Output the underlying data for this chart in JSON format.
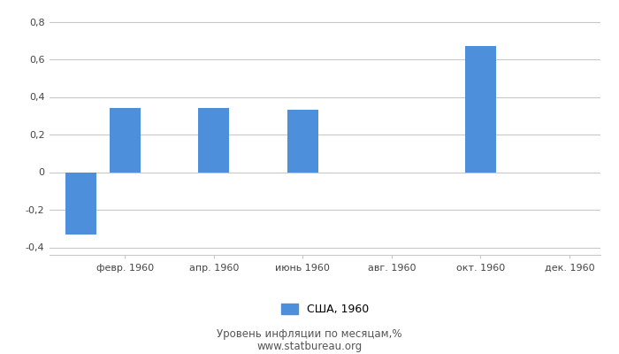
{
  "months_x": [
    0,
    1,
    2,
    3,
    4,
    5,
    6,
    7,
    8,
    9,
    10,
    11
  ],
  "values": [
    -0.33,
    0.34,
    0.0,
    0.34,
    0.0,
    0.33,
    0.0,
    0.0,
    0.0,
    0.67,
    0.0,
    0.0
  ],
  "bar_color": "#4d8fdb",
  "xtick_positions": [
    1,
    3,
    5,
    7,
    9,
    11
  ],
  "xtick_labels": [
    "февр. 1960",
    "апр. 1960",
    "июнь 1960",
    "авг. 1960",
    "окт. 1960",
    "дек. 1960"
  ],
  "ylim": [
    -0.44,
    0.84
  ],
  "yticks": [
    -0.4,
    -0.2,
    0.0,
    0.2,
    0.4,
    0.6,
    0.8
  ],
  "ytick_labels": [
    "-0,4",
    "-0,2",
    "0",
    "0,2",
    "0,4",
    "0,6",
    "0,8"
  ],
  "legend_label": "США, 1960",
  "subtitle": "Уровень инфляции по месяцам,%",
  "website": "www.statbureau.org",
  "background_color": "#ffffff",
  "grid_color": "#c8c8c8",
  "bar_width": 0.7
}
